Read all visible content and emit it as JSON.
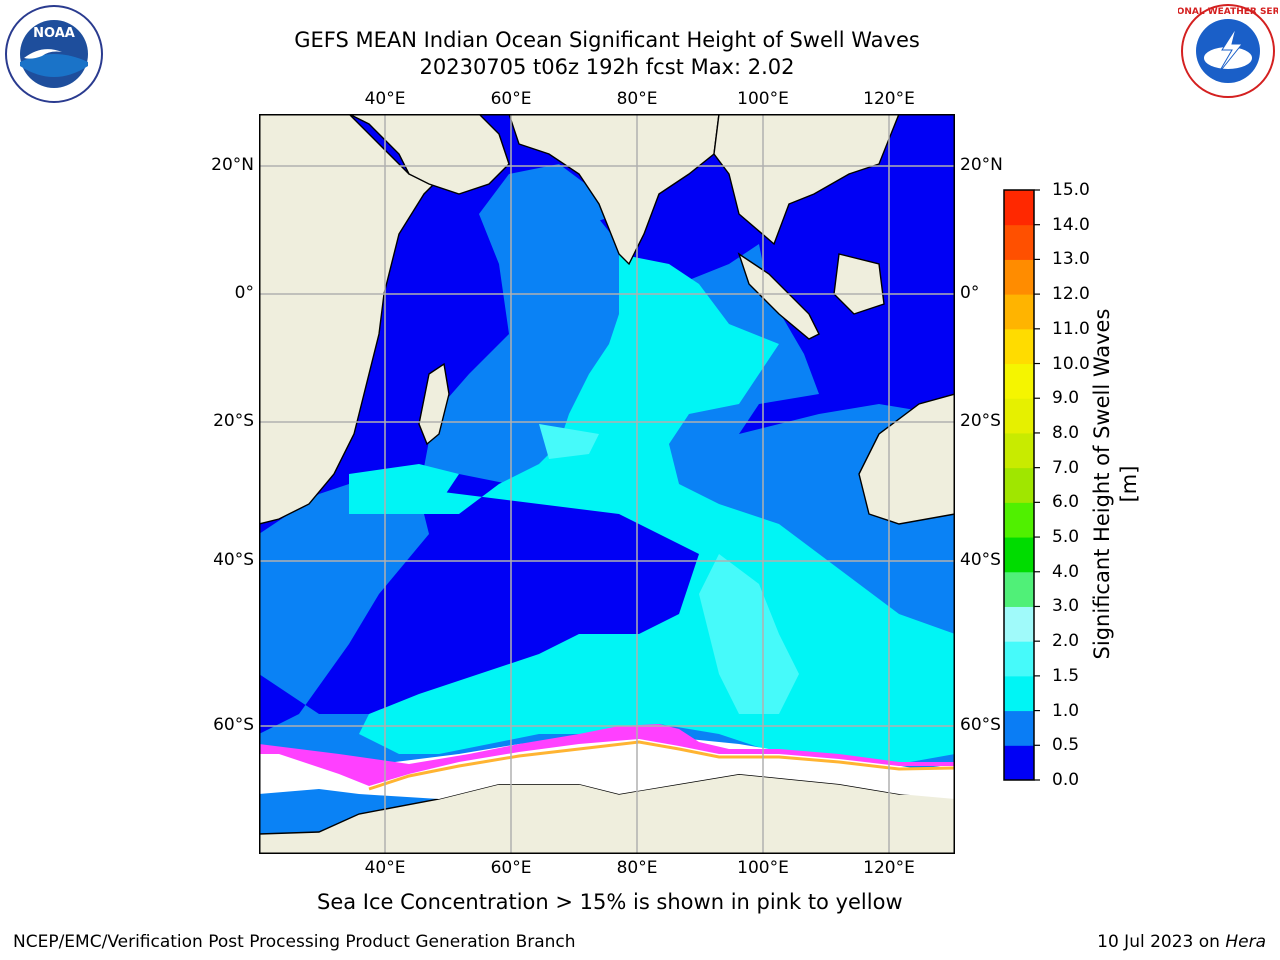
{
  "header": {
    "title_line1": "GEFS MEAN Indian Ocean Significant Height of Swell Waves",
    "title_line2": "20230705 t06z 192h fcst   Max: 2.02"
  },
  "logos": {
    "noaa_text": "NOAA",
    "nws_text": "NATIONAL WEATHER SERVICE"
  },
  "map": {
    "lon_ticks": [
      "40°E",
      "60°E",
      "80°E",
      "100°E",
      "120°E"
    ],
    "lon_values": [
      40,
      60,
      80,
      100,
      120
    ],
    "lat_ticks": [
      "20°N",
      "0°",
      "20°S",
      "40°S",
      "60°S"
    ],
    "lat_values": [
      20,
      0,
      -20,
      -40,
      -60
    ],
    "lon_range": [
      20,
      130
    ],
    "lat_range": [
      -70,
      30
    ],
    "colors": {
      "land": "#efeedd",
      "ocean_low": "#0000f5",
      "ocean_mid": "#0a82f5",
      "ocean_high": "#00f5f5",
      "ocean_higher": "#46fafa",
      "sea_ice": "#ff40ff",
      "sea_ice_edge": "#ffb432",
      "ice_shelf": "#ffffff",
      "grid": "#b0b0b0"
    }
  },
  "colorbar": {
    "label": "Significant Height of Swell Waves [m]",
    "ticks": [
      "0.0",
      "0.5",
      "1.0",
      "1.5",
      "2.0",
      "3.0",
      "4.0",
      "5.0",
      "6.0",
      "7.0",
      "8.0",
      "9.0",
      "10.0",
      "11.0",
      "12.0",
      "13.0",
      "14.0",
      "15.0"
    ],
    "colors": [
      "#0000f5",
      "#0a7df5",
      "#00f5f5",
      "#46fafa",
      "#a0fafa",
      "#50f078",
      "#00dc00",
      "#50f000",
      "#a0e600",
      "#c8eb00",
      "#e6f000",
      "#f5f500",
      "#ffdc00",
      "#ffb400",
      "#ff8c00",
      "#ff5000",
      "#ff2800"
    ]
  },
  "caption": "Sea Ice Concentration > 15% is shown in pink to yellow",
  "footer": {
    "left": "NCEP/EMC/Verification Post Processing Product Generation Branch",
    "right_prefix": "10 Jul 2023 on ",
    "right_host": "Hera"
  }
}
